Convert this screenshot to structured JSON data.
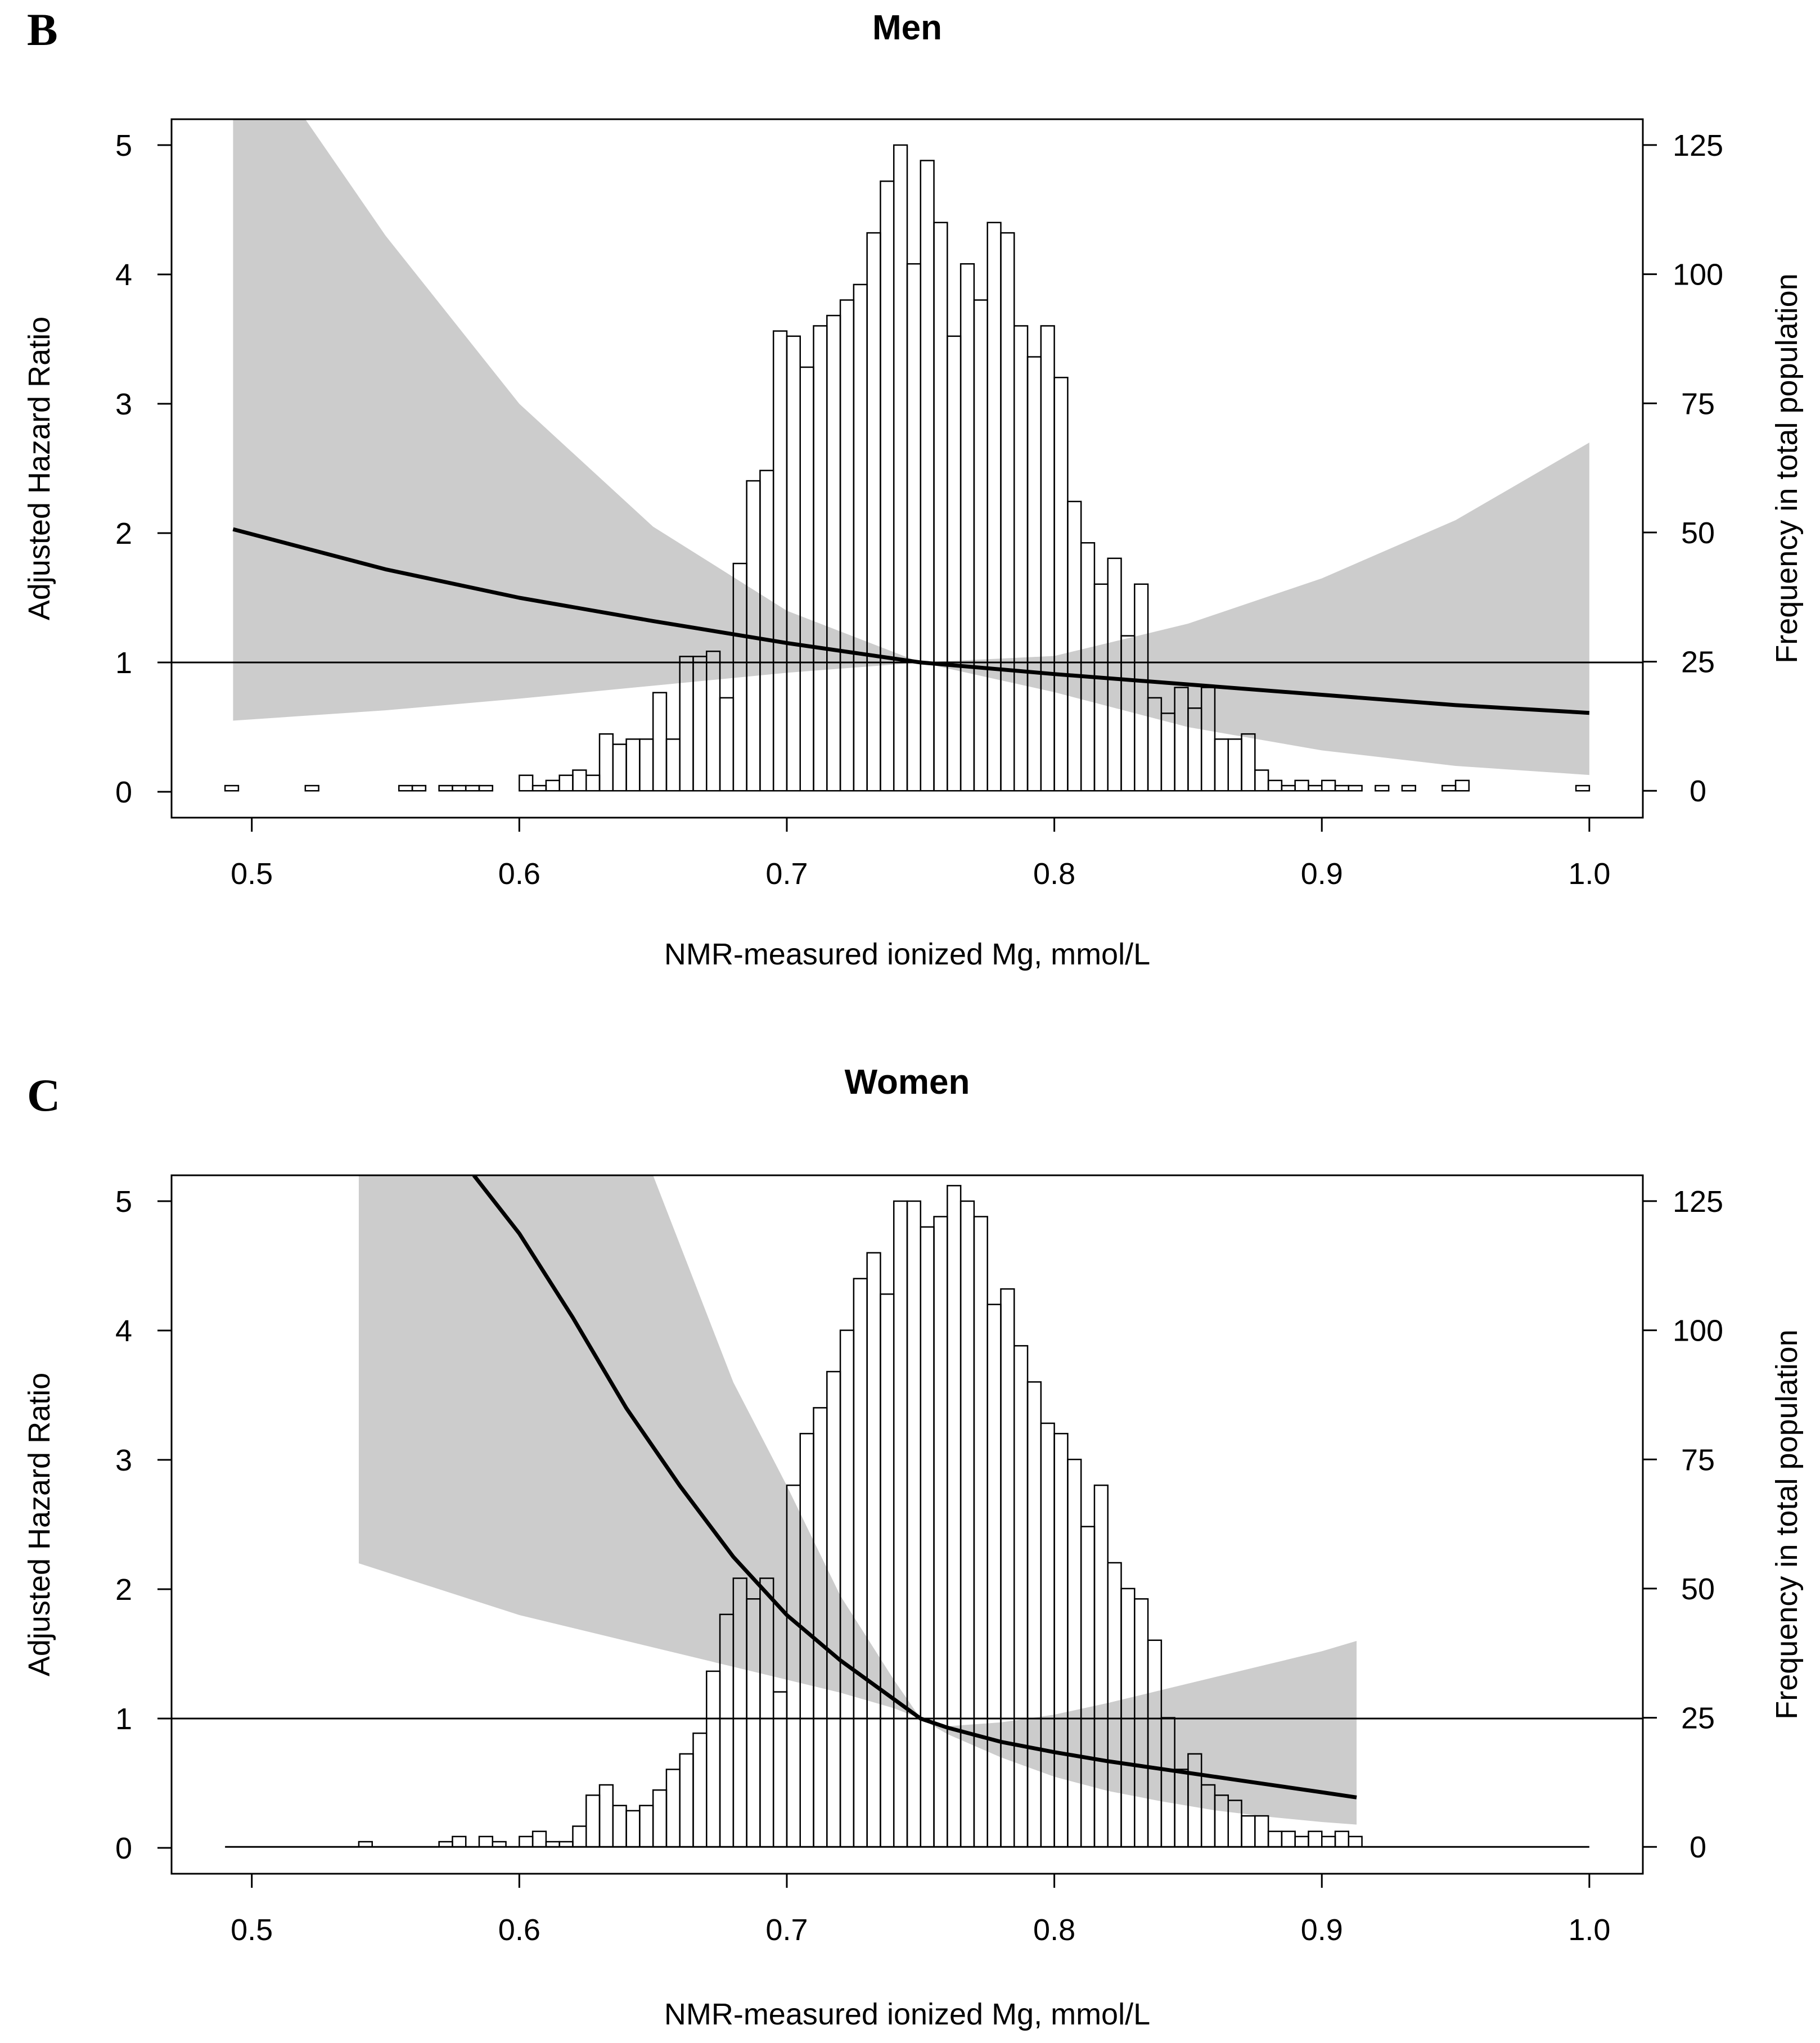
{
  "chart_data": [
    {
      "panel": "B",
      "title": "Men",
      "type": "line",
      "xlabel": "NMR-measured ionized Mg, mmol/L",
      "ylabel": "Adjusted Hazard Ratio",
      "y2label": "Frequency in total population",
      "xlim": [
        0.47,
        1.02
      ],
      "ylim": [
        -0.2,
        5.2
      ],
      "y2lim": [
        -5.2,
        130
      ],
      "xticks": [
        "0.5",
        "0.6",
        "0.7",
        "0.8",
        "0.9",
        "1.0"
      ],
      "yticks": [
        "0",
        "1",
        "2",
        "3",
        "4",
        "5"
      ],
      "y2ticks": [
        "0",
        "25",
        "50",
        "75",
        "100",
        "125"
      ],
      "reference_line": 1,
      "hr_curve": {
        "x": [
          0.493,
          0.55,
          0.6,
          0.65,
          0.7,
          0.75,
          0.8,
          0.85,
          0.9,
          0.95,
          1.0
        ],
        "y": [
          2.03,
          1.72,
          1.5,
          1.32,
          1.15,
          1.0,
          0.91,
          0.83,
          0.75,
          0.67,
          0.61
        ]
      },
      "ci_upper": {
        "x": [
          0.493,
          0.52,
          0.55,
          0.6,
          0.65,
          0.7,
          0.75,
          0.8,
          0.85,
          0.9,
          0.95,
          1.0
        ],
        "y": [
          5.2,
          5.2,
          4.3,
          3.0,
          2.05,
          1.4,
          1.0,
          1.05,
          1.3,
          1.65,
          2.1,
          2.7
        ]
      },
      "ci_lower": {
        "x": [
          0.493,
          0.55,
          0.6,
          0.65,
          0.7,
          0.75,
          0.8,
          0.85,
          0.9,
          0.95,
          1.0
        ],
        "y": [
          0.55,
          0.63,
          0.72,
          0.82,
          0.92,
          1.0,
          0.77,
          0.5,
          0.32,
          0.2,
          0.13
        ]
      },
      "histogram": {
        "bin_width": 0.005,
        "bin_starts": [
          0.49,
          0.52,
          0.555,
          0.56,
          0.57,
          0.575,
          0.58,
          0.585,
          0.6,
          0.605,
          0.61,
          0.615,
          0.62,
          0.625,
          0.63,
          0.635,
          0.64,
          0.645,
          0.65,
          0.655,
          0.66,
          0.665,
          0.67,
          0.675,
          0.68,
          0.685,
          0.69,
          0.695,
          0.7,
          0.705,
          0.71,
          0.715,
          0.72,
          0.725,
          0.73,
          0.735,
          0.74,
          0.745,
          0.75,
          0.755,
          0.76,
          0.765,
          0.77,
          0.775,
          0.78,
          0.785,
          0.79,
          0.795,
          0.8,
          0.805,
          0.81,
          0.815,
          0.82,
          0.825,
          0.83,
          0.835,
          0.84,
          0.845,
          0.85,
          0.855,
          0.86,
          0.865,
          0.87,
          0.875,
          0.88,
          0.885,
          0.89,
          0.895,
          0.9,
          0.905,
          0.91,
          0.92,
          0.93,
          0.945,
          0.95,
          0.995
        ],
        "counts": [
          1,
          1,
          1,
          1,
          1,
          1,
          1,
          1,
          3,
          1,
          2,
          3,
          4,
          3,
          11,
          9,
          10,
          10,
          19,
          10,
          26,
          26,
          27,
          18,
          44,
          60,
          62,
          89,
          88,
          82,
          90,
          92,
          95,
          98,
          108,
          118,
          125,
          102,
          122,
          110,
          88,
          102,
          95,
          110,
          108,
          90,
          84,
          90,
          80,
          56,
          48,
          40,
          45,
          30,
          40,
          18,
          15,
          20,
          16,
          20,
          10,
          10,
          11,
          4,
          2,
          1,
          2,
          1,
          2,
          1,
          1,
          1,
          1,
          1,
          2,
          1
        ]
      }
    },
    {
      "panel": "C",
      "title": "Women",
      "type": "line",
      "xlabel": "NMR-measured ionized Mg, mmol/L",
      "ylabel": "Adjusted Hazard Ratio",
      "y2label": "Frequency in total population",
      "xlim": [
        0.47,
        1.02
      ],
      "ylim": [
        -0.2,
        5.2
      ],
      "y2lim": [
        -5.2,
        130
      ],
      "xticks": [
        "0.5",
        "0.6",
        "0.7",
        "0.8",
        "0.9",
        "1.0"
      ],
      "yticks": [
        "0",
        "1",
        "2",
        "3",
        "4",
        "5"
      ],
      "y2ticks": [
        "0",
        "25",
        "50",
        "75",
        "100",
        "125"
      ],
      "reference_line": 1,
      "hr_curve": {
        "x": [
          0.583,
          0.6,
          0.62,
          0.64,
          0.66,
          0.68,
          0.7,
          0.72,
          0.74,
          0.75,
          0.76,
          0.78,
          0.8,
          0.82,
          0.84,
          0.86,
          0.88,
          0.9,
          0.913
        ],
        "y": [
          5.2,
          4.75,
          4.1,
          3.4,
          2.8,
          2.25,
          1.8,
          1.45,
          1.15,
          1.0,
          0.93,
          0.82,
          0.74,
          0.67,
          0.61,
          0.55,
          0.49,
          0.43,
          0.39
        ]
      },
      "ci_upper": {
        "x": [
          0.54,
          0.6,
          0.65,
          0.68,
          0.7,
          0.72,
          0.74,
          0.75,
          0.76,
          0.78,
          0.8,
          0.82,
          0.84,
          0.86,
          0.88,
          0.9,
          0.913
        ],
        "y": [
          5.2,
          5.2,
          5.2,
          3.6,
          2.8,
          1.95,
          1.3,
          1.0,
          0.94,
          0.97,
          1.03,
          1.12,
          1.22,
          1.32,
          1.42,
          1.52,
          1.6
        ]
      },
      "ci_lower": {
        "x": [
          0.54,
          0.6,
          0.65,
          0.68,
          0.7,
          0.72,
          0.74,
          0.75,
          0.76,
          0.78,
          0.8,
          0.82,
          0.84,
          0.86,
          0.88,
          0.9,
          0.913
        ],
        "y": [
          2.2,
          1.8,
          1.55,
          1.4,
          1.3,
          1.2,
          1.08,
          1.0,
          0.88,
          0.7,
          0.55,
          0.44,
          0.36,
          0.29,
          0.24,
          0.2,
          0.18
        ]
      },
      "histogram": {
        "bin_width": 0.005,
        "bin_starts": [
          0.54,
          0.57,
          0.575,
          0.585,
          0.59,
          0.6,
          0.605,
          0.61,
          0.615,
          0.62,
          0.625,
          0.63,
          0.635,
          0.64,
          0.645,
          0.65,
          0.655,
          0.66,
          0.665,
          0.67,
          0.675,
          0.68,
          0.685,
          0.69,
          0.695,
          0.7,
          0.705,
          0.71,
          0.715,
          0.72,
          0.725,
          0.73,
          0.735,
          0.74,
          0.745,
          0.75,
          0.755,
          0.76,
          0.765,
          0.77,
          0.775,
          0.78,
          0.785,
          0.79,
          0.795,
          0.8,
          0.805,
          0.81,
          0.815,
          0.82,
          0.825,
          0.83,
          0.835,
          0.84,
          0.845,
          0.85,
          0.855,
          0.86,
          0.865,
          0.87,
          0.875,
          0.88,
          0.885,
          0.89,
          0.895,
          0.9,
          0.905,
          0.91
        ],
        "counts": [
          1,
          1,
          2,
          2,
          1,
          2,
          3,
          1,
          1,
          4,
          10,
          12,
          8,
          7,
          8,
          11,
          15,
          18,
          22,
          34,
          45,
          52,
          48,
          52,
          30,
          70,
          80,
          85,
          92,
          100,
          110,
          115,
          107,
          125,
          125,
          120,
          122,
          128,
          125,
          122,
          105,
          108,
          97,
          90,
          82,
          80,
          75,
          62,
          70,
          55,
          50,
          48,
          40,
          25,
          15,
          18,
          12,
          10,
          9,
          6,
          6,
          3,
          3,
          2,
          3,
          2,
          3,
          2
        ]
      }
    }
  ]
}
